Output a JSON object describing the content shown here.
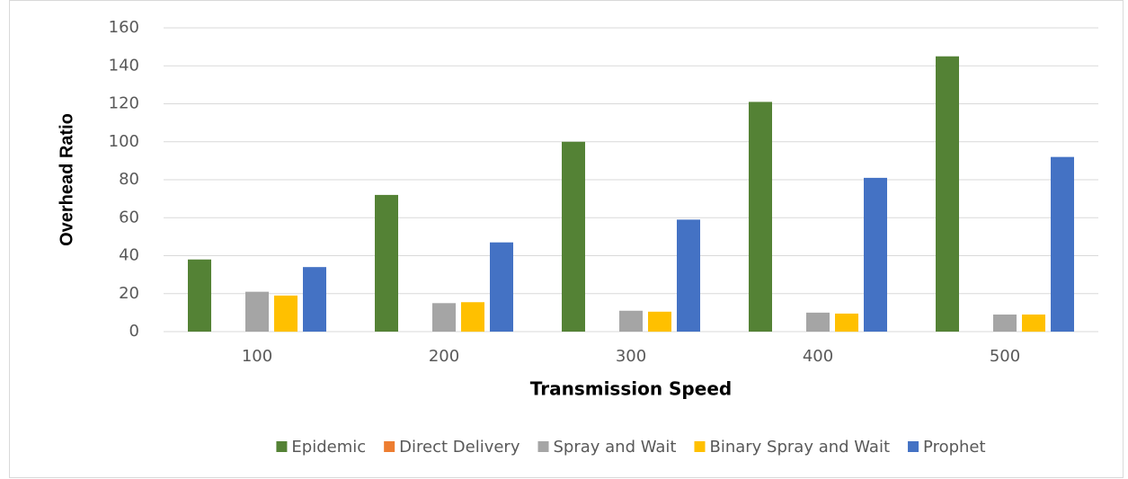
{
  "chart_data": {
    "type": "bar",
    "x_label": "Transmission Speed",
    "y_label": "Overhead Ratio",
    "categories": [
      "100",
      "200",
      "300",
      "400",
      "500"
    ],
    "series": [
      {
        "name": "Epidemic",
        "color": "#548235",
        "values": [
          38,
          72,
          100,
          121,
          145
        ]
      },
      {
        "name": "Direct Delivery",
        "color": "#ed7d31",
        "values": [
          0,
          0,
          0,
          0,
          0
        ]
      },
      {
        "name": "Spray and Wait",
        "color": "#a5a5a5",
        "values": [
          21,
          15,
          11,
          10,
          9
        ]
      },
      {
        "name": "Binary Spray and Wait",
        "color": "#ffc000",
        "values": [
          19,
          15.5,
          10.5,
          9.5,
          9
        ]
      },
      {
        "name": "Prophet",
        "color": "#4472c4",
        "values": [
          34,
          47,
          59,
          81,
          92
        ]
      }
    ],
    "ylim": [
      0,
      160
    ],
    "yticks": [
      0,
      20,
      40,
      60,
      80,
      100,
      120,
      140,
      160
    ],
    "grid": true,
    "legend": "bottom"
  }
}
